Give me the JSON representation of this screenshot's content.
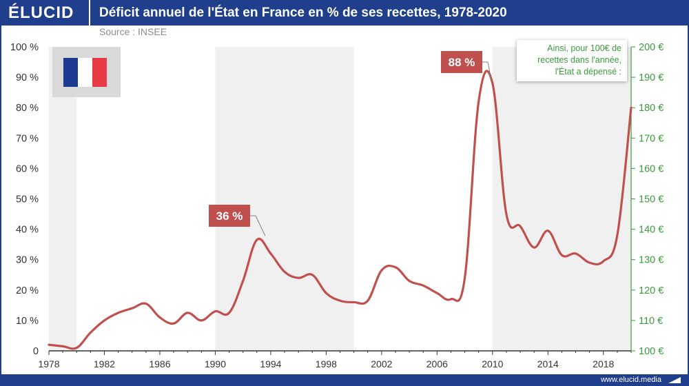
{
  "header": {
    "logo": "ÉLUCID",
    "title": "Déficit annuel de l'État en France en % de ses recettes, 1978-2020"
  },
  "source": "Source : INSEE",
  "footer": {
    "site": "www.elucid.media"
  },
  "annotation_box": {
    "lines": [
      "Ainsi, pour 100€ de",
      "recettes dans l'année,",
      "l'État a dépensé :"
    ]
  },
  "colors": {
    "brand": "#1f3f8c",
    "series": "#c0504d",
    "secondary_axis": "#3a9b3a",
    "band": "#f0f0f0",
    "flag_blue": "#1b3a8f",
    "flag_red": "#e83a45"
  },
  "icons": {
    "flag": "france-flag-icon"
  },
  "chart_data": {
    "type": "line",
    "title": "Déficit annuel de l'État en France en % de ses recettes, 1978-2020",
    "xlabel": "",
    "ylabel": "",
    "xlim": [
      1978,
      2020
    ],
    "ylim": [
      0,
      100
    ],
    "y2lim": [
      100,
      200
    ],
    "x_ticks": [
      "1978",
      "1982",
      "1986",
      "1990",
      "1994",
      "1998",
      "2002",
      "2006",
      "2010",
      "2014",
      "2018"
    ],
    "y_ticks": [
      "0",
      "10 %",
      "20 %",
      "30 %",
      "40 %",
      "50 %",
      "60 %",
      "70 %",
      "80 %",
      "90 %",
      "100 %"
    ],
    "y2_ticks": [
      "100 €",
      "110 €",
      "120 €",
      "130 €",
      "140 €",
      "150 €",
      "160 €",
      "170 €",
      "180 €",
      "190 €",
      "200 €"
    ],
    "series": [
      {
        "x": [
          1978,
          1979,
          1980,
          1981,
          1982,
          1983,
          1984,
          1985,
          1986,
          1987,
          1988,
          1989,
          1990,
          1991,
          1992,
          1993,
          1994,
          1995,
          1996,
          1997,
          1998,
          1999,
          2000,
          2001,
          2002,
          2003,
          2004,
          2005,
          2006,
          2007,
          2008,
          2009,
          2010,
          2011,
          2012,
          2013,
          2014,
          2015,
          2016,
          2017,
          2018,
          2019,
          2020
        ],
        "values": [
          2,
          1.5,
          1,
          6,
          10,
          12.5,
          14,
          15.5,
          11,
          9,
          12.5,
          10,
          13,
          12.5,
          23,
          36.5,
          32,
          26,
          24,
          25,
          19,
          16.5,
          16,
          16.5,
          26.5,
          27.5,
          23,
          21.5,
          19,
          17,
          24,
          82,
          88,
          45,
          41,
          34,
          39.5,
          31.5,
          32,
          29,
          29.5,
          38,
          80
        ]
      }
    ],
    "annotations": [
      {
        "label": "36 %",
        "x": 1993.7,
        "value": 36.5
      },
      {
        "label": "88 %",
        "x": 2010,
        "value": 88
      }
    ],
    "bands": [
      [
        1978,
        1980
      ],
      [
        1990,
        2000
      ],
      [
        2010,
        2020
      ]
    ],
    "grid": false
  }
}
